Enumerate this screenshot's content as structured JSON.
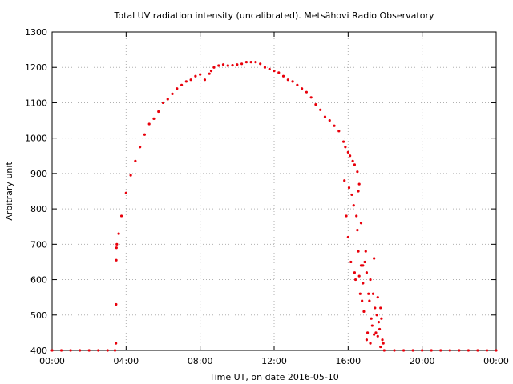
{
  "chart_data": {
    "type": "scatter",
    "title": "Total UV radiation intensity (uncalibrated). Metsähovi Radio Observatory",
    "xlabel": "Time UT, on date 2016-05-10",
    "ylabel": "Arbitrary unit",
    "xlim": [
      0,
      24
    ],
    "ylim": [
      400,
      1300
    ],
    "x_unit": "hours UT",
    "x_ticks": [
      0,
      4,
      8,
      12,
      16,
      20,
      24
    ],
    "x_tick_labels": [
      "00:00",
      "04:00",
      "08:00",
      "12:00",
      "16:00",
      "20:00",
      "00:00"
    ],
    "y_ticks": [
      400,
      500,
      600,
      700,
      800,
      900,
      1000,
      1100,
      1200,
      1300
    ],
    "y_tick_labels": [
      "400",
      "500",
      "600",
      "700",
      "800",
      "900",
      "1000",
      "1100",
      "1200",
      "1300"
    ],
    "grid": true,
    "legend": "none",
    "series_color": "#e8000b",
    "series": [
      {
        "x": [
          0.0,
          0.5,
          1.0,
          1.5,
          2.0,
          2.5,
          3.0,
          3.4,
          3.45,
          3.46,
          3.47,
          3.48,
          3.5,
          3.6,
          3.75,
          4.0,
          4.25,
          4.5,
          4.75,
          5.0,
          5.25,
          5.5,
          5.75,
          6.0,
          6.25,
          6.5,
          6.75,
          7.0,
          7.25,
          7.5,
          7.75,
          8.0,
          8.25,
          8.5,
          8.6,
          8.75,
          9.0,
          9.25,
          9.5,
          9.75,
          10.0,
          10.25,
          10.5,
          10.75,
          11.0,
          11.25,
          11.5,
          11.75,
          12.0,
          12.25,
          12.5,
          12.75,
          13.0,
          13.25,
          13.5,
          13.75,
          14.0,
          14.25,
          14.5,
          14.75,
          15.0,
          15.25,
          15.5,
          15.75,
          15.85,
          16.0,
          16.1,
          16.25,
          16.35,
          16.5,
          15.8,
          15.9,
          16.0,
          16.05,
          16.15,
          16.2,
          16.3,
          16.35,
          16.4,
          16.45,
          16.5,
          16.55,
          16.6,
          16.65,
          16.7,
          16.75,
          16.8,
          16.85,
          16.9,
          16.95,
          17.0,
          17.05,
          17.1,
          17.15,
          17.2,
          17.25,
          17.3,
          17.35,
          17.4,
          17.45,
          17.5,
          17.55,
          17.6,
          17.65,
          17.7,
          17.75,
          17.8,
          17.85,
          17.9,
          16.55,
          16.6,
          16.7,
          16.8,
          17.0,
          17.2,
          17.4,
          17.6,
          17.75,
          17.95,
          18.5,
          19.0,
          19.5,
          20.0,
          20.5,
          21.0,
          21.5,
          22.0,
          22.5,
          23.0,
          23.5,
          24.0
        ],
        "y": [
          400,
          400,
          400,
          400,
          400,
          400,
          400,
          400,
          420,
          530,
          655,
          690,
          700,
          730,
          780,
          845,
          895,
          935,
          975,
          1010,
          1040,
          1055,
          1075,
          1100,
          1110,
          1125,
          1140,
          1150,
          1160,
          1165,
          1175,
          1180,
          1165,
          1182,
          1190,
          1200,
          1205,
          1208,
          1205,
          1206,
          1208,
          1210,
          1215,
          1215,
          1215,
          1210,
          1200,
          1195,
          1190,
          1185,
          1175,
          1165,
          1160,
          1150,
          1140,
          1130,
          1115,
          1095,
          1080,
          1060,
          1050,
          1035,
          1020,
          990,
          975,
          960,
          950,
          935,
          925,
          905,
          880,
          780,
          720,
          860,
          650,
          840,
          810,
          620,
          600,
          780,
          740,
          680,
          610,
          560,
          640,
          540,
          590,
          510,
          650,
          680,
          620,
          450,
          560,
          540,
          600,
          490,
          470,
          560,
          660,
          520,
          450,
          500,
          550,
          480,
          460,
          520,
          490,
          430,
          420,
          850,
          870,
          760,
          640,
          430,
          420,
          445,
          440,
          410,
          400,
          400,
          400,
          400,
          400,
          400,
          400,
          400,
          400,
          400,
          400,
          400,
          400
        ]
      }
    ]
  }
}
